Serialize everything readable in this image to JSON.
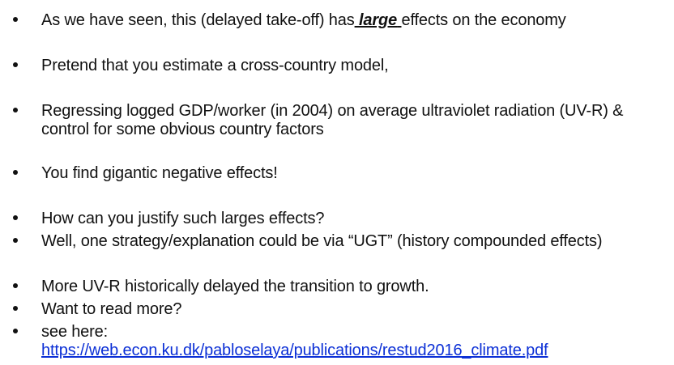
{
  "bullets": [
    {
      "before": "As we have seen, this (delayed take-off) has",
      "gap1": " ",
      "emphasis": "large",
      "gap2": " ",
      "after": "effects on the economy"
    },
    {
      "text": "Pretend that you estimate a cross-country model,"
    },
    {
      "line1": "Regressing logged GDP/worker (in 2004) on average ultraviolet radiation (UV-R) &",
      "line2": "control for some obvious country factors"
    },
    {
      "text": "You find gigantic negative effects!"
    },
    {
      "text": "How can you justify such larges effects?"
    },
    {
      "text": "Well, one strategy/explanation could be via “UGT” (history compounded effects)"
    },
    {
      "text": "More UV-R historically delayed the transition to growth."
    },
    {
      "text": "Want to read more?"
    },
    {
      "text": "see here:",
      "link": "https://web.econ.ku.dk/pabloselaya/publications/restud2016_climate.pdf"
    }
  ]
}
